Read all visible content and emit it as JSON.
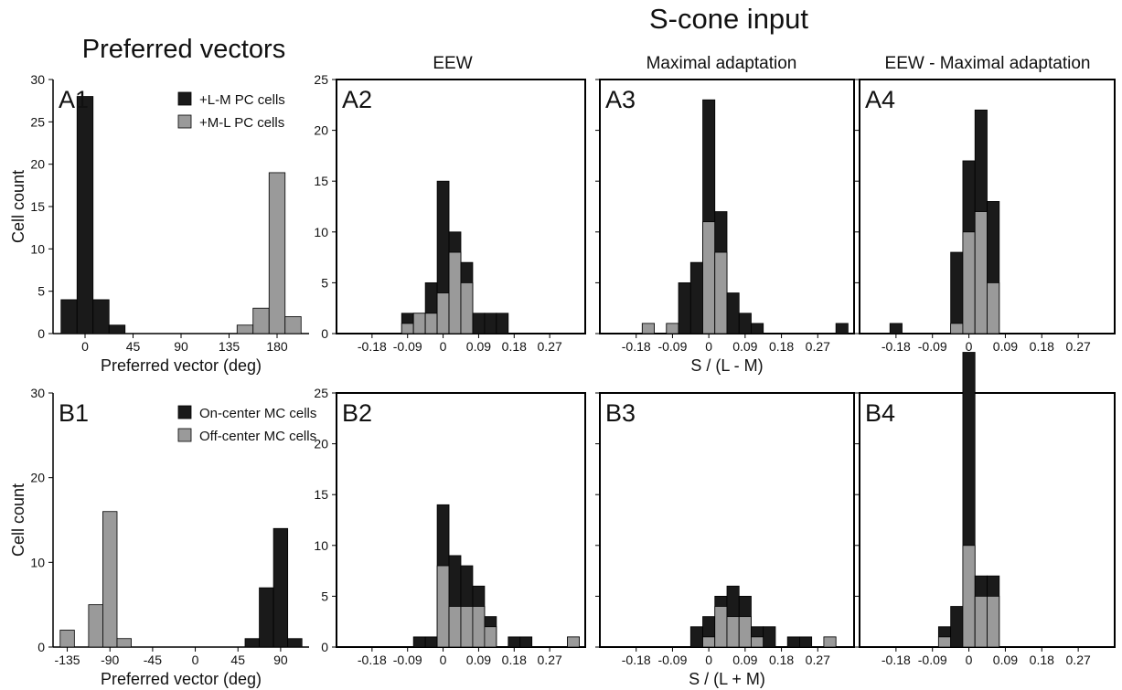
{
  "figure": {
    "super_title": "S-cone input",
    "left_title": "Preferred vectors",
    "column_titles": [
      "EEW",
      "Maximal adaptation",
      "EEW - Maximal adaptation"
    ],
    "row_xlabels": [
      "S / (L - M)",
      "S / (L + M)"
    ],
    "colors": {
      "dark_series": "#1a1a1a",
      "light_series": "#9a9a9a",
      "axis": "#000000"
    }
  },
  "chart_data": [
    {
      "id": "A1",
      "panel_label": "A1",
      "type": "bar",
      "stacked": false,
      "xlabel": "Preferred vector (deg)",
      "ylabel": "Cell count",
      "xlim": [
        -30,
        210
      ],
      "ylim": [
        0,
        30
      ],
      "xticks": [
        0,
        45,
        90,
        135,
        180
      ],
      "yticks": [
        0,
        5,
        10,
        15,
        20,
        25,
        30
      ],
      "bin_width": 15,
      "legend": "top-right",
      "series": [
        {
          "name": "+L-M PC cells",
          "color": "#1a1a1a",
          "x": [
            -15,
            0,
            15,
            30
          ],
          "values": [
            4,
            28,
            4,
            1
          ]
        },
        {
          "name": "+M-L PC cells",
          "color": "#9a9a9a",
          "x": [
            150,
            165,
            180,
            195
          ],
          "values": [
            1,
            3,
            19,
            2
          ]
        }
      ]
    },
    {
      "id": "A2",
      "panel_label": "A2",
      "type": "bar",
      "stacked": true,
      "xlim": [
        -0.27,
        0.36
      ],
      "ylim": [
        0,
        25
      ],
      "xticks": [
        -0.18,
        -0.09,
        0,
        0.09,
        0.18,
        0.27
      ],
      "yticks": [
        0,
        5,
        10,
        15,
        20,
        25
      ],
      "bin_width": 0.03,
      "x": [
        -0.09,
        -0.06,
        -0.03,
        0,
        0.03,
        0.06,
        0.09,
        0.12,
        0.15
      ],
      "totals": [
        2,
        2,
        5,
        15,
        10,
        7,
        2,
        2,
        2
      ],
      "light": [
        1,
        2,
        2,
        4,
        8,
        5,
        0,
        0,
        0
      ]
    },
    {
      "id": "A3",
      "panel_label": "A3",
      "type": "bar",
      "stacked": true,
      "xlabel": "S / (L - M)",
      "xlim": [
        -0.27,
        0.36
      ],
      "ylim": [
        0,
        25
      ],
      "xticks": [
        -0.18,
        -0.09,
        0,
        0.09,
        0.18,
        0.27
      ],
      "yticks": [
        0,
        5,
        10,
        15,
        20,
        25
      ],
      "bin_width": 0.03,
      "x": [
        -0.15,
        -0.09,
        -0.06,
        -0.03,
        0,
        0.03,
        0.06,
        0.09,
        0.12,
        0.15,
        0.33
      ],
      "totals": [
        1,
        1,
        5,
        7,
        23,
        12,
        4,
        2,
        1,
        0,
        1
      ],
      "light": [
        1,
        1,
        0,
        0,
        11,
        8,
        0,
        0,
        0,
        0,
        0
      ]
    },
    {
      "id": "A4",
      "panel_label": "A4",
      "type": "bar",
      "stacked": true,
      "xlim": [
        -0.27,
        0.36
      ],
      "ylim": [
        0,
        25
      ],
      "xticks": [
        -0.18,
        -0.09,
        0,
        0.09,
        0.18,
        0.27
      ],
      "yticks": [
        0,
        5,
        10,
        15,
        20,
        25
      ],
      "bin_width": 0.03,
      "x": [
        -0.18,
        -0.03,
        0,
        0.03,
        0.06
      ],
      "totals": [
        1,
        8,
        17,
        22,
        13
      ],
      "light": [
        0,
        1,
        10,
        12,
        5
      ]
    },
    {
      "id": "B1",
      "panel_label": "B1",
      "type": "bar",
      "stacked": false,
      "xlabel": "Preferred vector (deg)",
      "ylabel": "Cell count",
      "xlim": [
        -150,
        120
      ],
      "ylim": [
        0,
        30
      ],
      "xticks": [
        -135,
        -90,
        -45,
        0,
        45,
        90
      ],
      "yticks": [
        0,
        10,
        20,
        30
      ],
      "bin_width": 15,
      "legend": "top-right",
      "series": [
        {
          "name": "On-center MC cells",
          "color": "#1a1a1a",
          "x": [
            60,
            75,
            90,
            105
          ],
          "values": [
            1,
            7,
            14,
            1
          ]
        },
        {
          "name": "Off-center MC cells",
          "color": "#9a9a9a",
          "x": [
            -135,
            -105,
            -90,
            -75
          ],
          "values": [
            2,
            5,
            16,
            1
          ]
        }
      ]
    },
    {
      "id": "B2",
      "panel_label": "B2",
      "type": "bar",
      "stacked": true,
      "xlim": [
        -0.27,
        0.36
      ],
      "ylim": [
        0,
        25
      ],
      "xticks": [
        -0.18,
        -0.09,
        0,
        0.09,
        0.18,
        0.27
      ],
      "yticks": [
        0,
        5,
        10,
        15,
        20,
        25
      ],
      "bin_width": 0.03,
      "x": [
        -0.06,
        -0.03,
        0,
        0.03,
        0.06,
        0.09,
        0.12,
        0.18,
        0.21,
        0.33
      ],
      "totals": [
        1,
        1,
        14,
        9,
        8,
        6,
        3,
        1,
        1,
        1
      ],
      "light": [
        0,
        0,
        8,
        4,
        4,
        4,
        2,
        0,
        0,
        1
      ]
    },
    {
      "id": "B3",
      "panel_label": "B3",
      "type": "bar",
      "stacked": true,
      "xlabel": "S / (L + M)",
      "xlim": [
        -0.27,
        0.36
      ],
      "ylim": [
        0,
        25
      ],
      "xticks": [
        -0.18,
        -0.09,
        0,
        0.09,
        0.18,
        0.27
      ],
      "yticks": [
        0,
        5,
        10,
        15,
        20,
        25
      ],
      "bin_width": 0.03,
      "x": [
        -0.03,
        0,
        0.03,
        0.06,
        0.09,
        0.12,
        0.15,
        0.21,
        0.24,
        0.3
      ],
      "totals": [
        2,
        3,
        5,
        6,
        5,
        2,
        2,
        1,
        1,
        1
      ],
      "light": [
        0,
        1,
        4,
        3,
        3,
        1,
        0,
        0,
        0,
        1
      ]
    },
    {
      "id": "B4",
      "panel_label": "B4",
      "type": "bar",
      "stacked": true,
      "xlim": [
        -0.27,
        0.36
      ],
      "ylim": [
        0,
        25
      ],
      "xticks": [
        -0.18,
        -0.09,
        0,
        0.09,
        0.18,
        0.27
      ],
      "yticks": [
        0,
        5,
        10,
        15,
        20,
        25
      ],
      "bin_width": 0.03,
      "x": [
        -0.06,
        -0.03,
        0,
        0.03,
        0.06
      ],
      "totals": [
        2,
        4,
        29,
        7,
        7
      ],
      "light": [
        1,
        0,
        10,
        5,
        5
      ]
    }
  ]
}
